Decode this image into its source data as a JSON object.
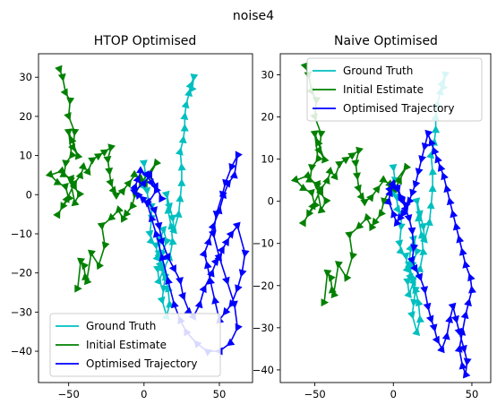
{
  "figure": {
    "suptitle": "noise4"
  },
  "colors": {
    "ground_truth": "#00bfbf",
    "initial_estimate": "#008000",
    "optimised": "#0000ff"
  },
  "chart_data": [
    {
      "type": "line",
      "title": "HTOP Optimised",
      "xlabel": "",
      "ylabel": "",
      "xlim": [
        -70,
        72
      ],
      "ylim": [
        -48,
        36
      ],
      "xticks": [
        -50,
        0,
        50
      ],
      "yticks": [
        -40,
        -30,
        -20,
        -10,
        0,
        10,
        20,
        30
      ],
      "xtick_labels": [
        "−50",
        "0",
        "50"
      ],
      "ytick_labels": [
        "−40",
        "−30",
        "−20",
        "−10",
        "0",
        "10",
        "20",
        "30"
      ],
      "grid": false,
      "legend": {
        "placement": "lower-left",
        "entries": [
          "Ground Truth",
          "Initial Estimate",
          "Optimised Trajectory"
        ]
      },
      "series": [
        {
          "name": "Ground Truth",
          "color": "#00bfbf",
          "marker": "triangle",
          "x": [
            0,
            1,
            0,
            2,
            3,
            5,
            5,
            4,
            5,
            8,
            9,
            10,
            11,
            14,
            13,
            12,
            15,
            17,
            16,
            14,
            12,
            10,
            11,
            13,
            15,
            12,
            9,
            10,
            13,
            17,
            19,
            18,
            16,
            15,
            17,
            19,
            20,
            23,
            24,
            25,
            25,
            24,
            26,
            27,
            27,
            28,
            30,
            31,
            33,
            32
          ],
          "y": [
            8,
            5,
            2,
            1,
            -2,
            -3,
            -6,
            -10,
            -12,
            -13,
            -16,
            -15,
            -18,
            -21,
            -24,
            -27,
            -31,
            -28,
            -24,
            -21,
            -18,
            -15,
            -11,
            -9,
            -12,
            -15,
            -19,
            -22,
            -19,
            -16,
            -12,
            -8,
            -4,
            0,
            -3,
            -6,
            -9,
            -5,
            -1,
            3,
            7,
            11,
            14,
            17,
            20,
            23,
            26,
            28,
            30,
            27
          ]
        },
        {
          "name": "Initial Estimate",
          "color": "#008000",
          "marker": "triangle",
          "x": [
            -56,
            -54,
            -52,
            -49,
            -50,
            -46,
            -47,
            -44,
            -48,
            -50,
            -48,
            -52,
            -53,
            -48,
            -46,
            -43,
            -46,
            -49,
            -55,
            -62,
            -57,
            -52,
            -50,
            -54,
            -57,
            -51,
            -46,
            -42,
            -40,
            -37,
            -34,
            -30,
            -26,
            -22,
            -24,
            -23,
            -22,
            -20,
            -18,
            -14,
            -10,
            -6,
            -2,
            1,
            4,
            8,
            -2,
            -6,
            -8,
            -12,
            -14,
            -17,
            -22,
            -28,
            -26,
            -30,
            -35,
            -38,
            -39,
            -40,
            -42,
            -44
          ],
          "y": [
            32,
            30,
            26,
            24,
            20,
            16,
            12,
            10,
            14,
            16,
            10,
            8,
            5,
            4,
            2,
            0,
            -2,
            4,
            6,
            5,
            3,
            2,
            -1,
            -3,
            -5,
            -1,
            3,
            5,
            7,
            6,
            9,
            10,
            11,
            12,
            9,
            6,
            3,
            1,
            0,
            1,
            3,
            5,
            4,
            3,
            5,
            8,
            3,
            0,
            -3,
            -5,
            -6,
            -4,
            -6,
            -8,
            -13,
            -18,
            -15,
            -22,
            -21,
            -18,
            -17,
            -24
          ]
        },
        {
          "name": "Optimised Trajectory",
          "color": "#0000ff",
          "marker": "triangle",
          "x": [
            -6,
            -4,
            -2,
            2,
            5,
            8,
            3,
            7,
            10,
            12,
            16,
            20,
            24,
            26,
            30,
            33,
            37,
            40,
            45,
            48,
            50,
            52,
            55,
            58,
            62,
            67,
            65,
            62,
            58,
            54,
            50,
            47,
            44,
            42,
            40,
            43,
            46,
            50,
            53,
            56,
            60,
            62,
            58,
            54,
            52,
            48,
            46,
            50,
            55,
            60,
            62,
            57,
            50,
            42,
            35,
            28,
            24,
            20,
            16,
            12,
            8,
            5,
            2,
            -1,
            -4,
            -6,
            0,
            4,
            8,
            12
          ],
          "y": [
            2,
            4,
            6,
            5,
            3,
            1,
            -2,
            -4,
            -8,
            -12,
            -16,
            -19,
            -22,
            -26,
            -30,
            -31,
            -28,
            -24,
            -20,
            -17,
            -16,
            -14,
            -12,
            -10,
            -8,
            -15,
            -20,
            -24,
            -28,
            -30,
            -32,
            -27,
            -22,
            -18,
            -15,
            -12,
            -8,
            -4,
            0,
            3,
            5,
            10,
            7,
            3,
            0,
            -5,
            -10,
            -16,
            -22,
            -28,
            -34,
            -38,
            -40,
            -40,
            -38,
            -35,
            -32,
            -28,
            -22,
            -16,
            -10,
            -6,
            -2,
            -1,
            0,
            1,
            3,
            5,
            2,
            -1
          ]
        }
      ]
    },
    {
      "type": "line",
      "title": "Naive Optimised",
      "xlabel": "",
      "ylabel": "",
      "xlim": [
        -72,
        62
      ],
      "ylim": [
        -43,
        35
      ],
      "xticks": [
        -50,
        0,
        50
      ],
      "yticks": [
        -40,
        -30,
        -20,
        -10,
        0,
        10,
        20,
        30
      ],
      "xtick_labels": [
        "−50",
        "0",
        "50"
      ],
      "ytick_labels": [
        "−40",
        "−30",
        "−20",
        "−10",
        "0",
        "10",
        "20",
        "30"
      ],
      "grid": false,
      "legend": {
        "placement": "top-right",
        "entries": [
          "Ground Truth",
          "Initial Estimate",
          "Optimised Trajectory"
        ]
      },
      "series": [
        {
          "name": "Ground Truth",
          "color": "#00bfbf",
          "marker": "triangle",
          "x": [
            0,
            1,
            0,
            2,
            3,
            5,
            5,
            4,
            5,
            8,
            9,
            10,
            11,
            14,
            13,
            12,
            15,
            17,
            16,
            14,
            12,
            10,
            11,
            13,
            15,
            12,
            9,
            10,
            13,
            17,
            19,
            18,
            16,
            15,
            17,
            19,
            20,
            23,
            24,
            25,
            25,
            24,
            26,
            27,
            27,
            28,
            30,
            31,
            33,
            32
          ],
          "y": [
            8,
            5,
            2,
            1,
            -2,
            -3,
            -6,
            -10,
            -12,
            -13,
            -16,
            -15,
            -18,
            -21,
            -24,
            -27,
            -31,
            -28,
            -24,
            -21,
            -18,
            -15,
            -11,
            -9,
            -12,
            -15,
            -19,
            -22,
            -19,
            -16,
            -12,
            -8,
            -4,
            0,
            -3,
            -6,
            -9,
            -5,
            -1,
            3,
            7,
            11,
            14,
            17,
            20,
            23,
            26,
            28,
            30,
            27
          ]
        },
        {
          "name": "Initial Estimate",
          "color": "#008000",
          "marker": "triangle",
          "x": [
            -56,
            -54,
            -52,
            -49,
            -50,
            -46,
            -47,
            -44,
            -48,
            -50,
            -48,
            -52,
            -53,
            -48,
            -46,
            -43,
            -46,
            -49,
            -55,
            -62,
            -57,
            -52,
            -50,
            -54,
            -57,
            -51,
            -46,
            -42,
            -40,
            -37,
            -34,
            -30,
            -26,
            -22,
            -24,
            -23,
            -22,
            -20,
            -18,
            -14,
            -10,
            -6,
            -2,
            1,
            4,
            8,
            -2,
            -6,
            -8,
            -12,
            -14,
            -17,
            -22,
            -28,
            -26,
            -30,
            -35,
            -38,
            -39,
            -40,
            -42,
            -44
          ],
          "y": [
            32,
            30,
            26,
            24,
            20,
            16,
            12,
            10,
            14,
            16,
            10,
            8,
            5,
            4,
            2,
            0,
            -2,
            4,
            6,
            5,
            3,
            2,
            -1,
            -3,
            -5,
            -1,
            3,
            5,
            7,
            6,
            9,
            10,
            11,
            12,
            9,
            6,
            3,
            1,
            0,
            1,
            3,
            5,
            4,
            3,
            5,
            8,
            3,
            0,
            -3,
            -5,
            -6,
            -4,
            -6,
            -8,
            -13,
            -18,
            -15,
            -22,
            -21,
            -18,
            -17,
            -24
          ]
        },
        {
          "name": "Optimised Trajectory",
          "color": "#0000ff",
          "marker": "triangle",
          "x": [
            -2,
            0,
            3,
            6,
            8,
            10,
            12,
            13,
            12,
            14,
            17,
            20,
            22,
            24,
            26,
            28,
            31,
            34,
            36,
            38,
            40,
            42,
            45,
            47,
            46,
            44,
            42,
            44,
            46,
            48,
            50,
            49,
            46,
            44,
            42,
            40,
            38,
            36,
            34,
            32,
            30,
            28,
            26,
            24,
            22,
            20,
            18,
            16,
            14,
            12,
            10,
            8,
            6,
            4,
            2,
            0,
            -3,
            -2,
            0,
            2,
            5
          ],
          "y": [
            3,
            4,
            3,
            0,
            -2,
            -4,
            -7,
            -11,
            -14,
            -16,
            -18,
            -21,
            -25,
            -28,
            -30,
            -33,
            -35,
            -32,
            -28,
            -25,
            -28,
            -31,
            -35,
            -38,
            -41,
            -39,
            -35,
            -31,
            -27,
            -24,
            -21,
            -18,
            -15,
            -12,
            -9,
            -6,
            -3,
            0,
            3,
            6,
            8,
            10,
            12,
            14,
            16,
            13,
            10,
            7,
            4,
            2,
            0,
            -1,
            -3,
            -4,
            -5,
            -3,
            0,
            2,
            4,
            3,
            1
          ]
        }
      ]
    }
  ]
}
